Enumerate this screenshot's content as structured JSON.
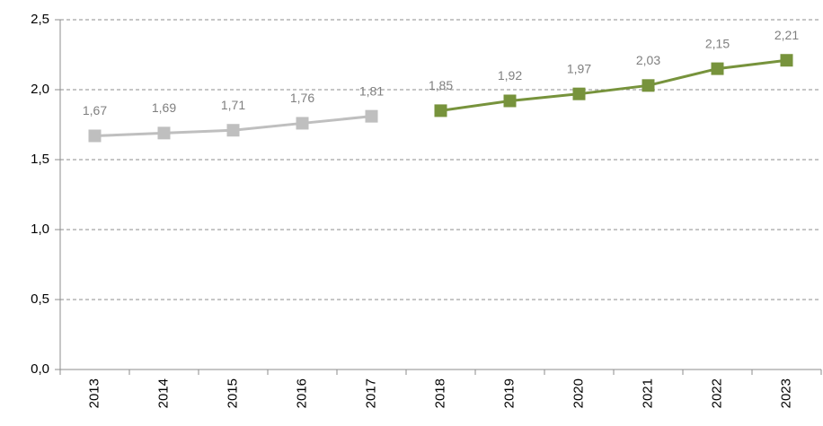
{
  "chart_data": {
    "type": "line",
    "categories": [
      "2013",
      "2014",
      "2015",
      "2016",
      "2017",
      "2018",
      "2019",
      "2020",
      "2021",
      "2022",
      "2023"
    ],
    "series": [
      {
        "color": "#bfbfbf",
        "values": [
          1.67,
          1.69,
          1.71,
          1.76,
          1.81,
          null,
          null,
          null,
          null,
          null,
          null
        ],
        "value_labels": [
          "1,67",
          "1,69",
          "1,71",
          "1,76",
          "1,81",
          null,
          null,
          null,
          null,
          null,
          null
        ]
      },
      {
        "color": "#77933c",
        "values": [
          null,
          null,
          null,
          null,
          null,
          1.85,
          1.92,
          1.97,
          2.03,
          2.15,
          2.21
        ],
        "value_labels": [
          null,
          null,
          null,
          null,
          null,
          "1,85",
          "1,92",
          "1,97",
          "2,03",
          "2,15",
          "2,21"
        ]
      }
    ],
    "ylim": [
      0,
      2.5
    ],
    "yticks": [
      {
        "value": 0,
        "label": "0,0"
      },
      {
        "value": 0.5,
        "label": "0,5"
      },
      {
        "value": 1,
        "label": "1,0"
      },
      {
        "value": 1.5,
        "label": "1,5"
      },
      {
        "value": 2,
        "label": "2,0"
      },
      {
        "value": 2.5,
        "label": "2,5"
      }
    ],
    "grid": true
  }
}
